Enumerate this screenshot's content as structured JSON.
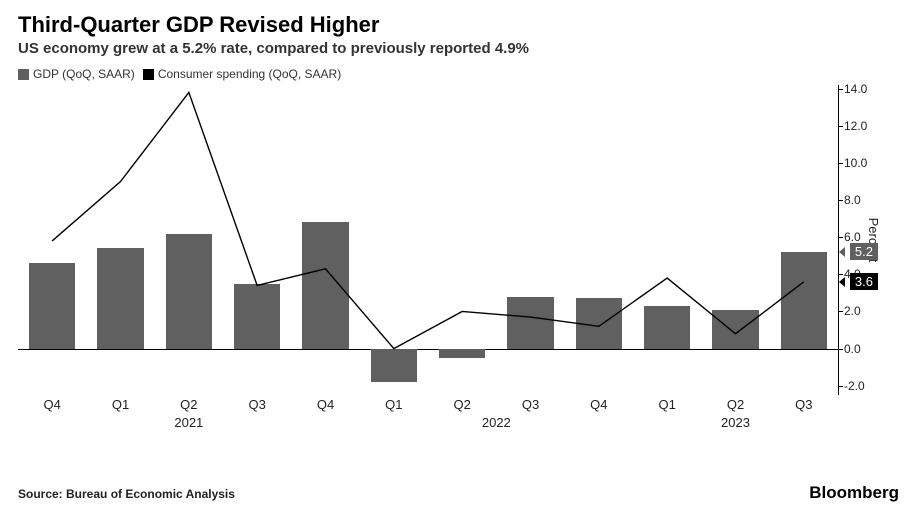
{
  "title": "Third-Quarter GDP Revised Higher",
  "subtitle": "US economy grew at a 5.2% rate, compared to previously reported 4.9%",
  "legend": {
    "series1": {
      "label": "GDP (QoQ, SAAR)",
      "swatch_color": "#606060"
    },
    "series2": {
      "label": "Consumer spending (QoQ, SAAR)",
      "swatch_color": "#000000"
    }
  },
  "chart": {
    "type": "bar+line",
    "yaxis": {
      "label": "Percent",
      "min": -2.5,
      "max": 14.2,
      "ticks": [
        -2.0,
        0.0,
        2.0,
        4.0,
        6.0,
        8.0,
        10.0,
        12.0,
        14.0
      ]
    },
    "categories": [
      "Q4",
      "Q1",
      "Q2",
      "Q3",
      "Q4",
      "Q1",
      "Q2",
      "Q3",
      "Q4",
      "Q1",
      "Q2",
      "Q3"
    ],
    "year_groups": [
      {
        "label": "2021",
        "center_index": 2
      },
      {
        "label": "2022",
        "center_index": 6.5
      },
      {
        "label": "2023",
        "center_index": 10
      }
    ],
    "bars": {
      "color": "#606060",
      "width_frac": 0.68,
      "values": [
        4.6,
        5.4,
        6.2,
        3.5,
        6.8,
        -1.8,
        -0.5,
        2.8,
        2.7,
        2.3,
        2.1,
        5.2
      ]
    },
    "line": {
      "color": "#000000",
      "width": 1.4,
      "values": [
        5.8,
        9.0,
        13.8,
        3.4,
        4.3,
        0.0,
        2.0,
        1.7,
        1.2,
        3.8,
        0.8,
        3.6
      ]
    },
    "callouts": [
      {
        "value": "5.2",
        "bg": "#606060",
        "y": 5.2
      },
      {
        "value": "3.6",
        "bg": "#000000",
        "y": 3.6
      }
    ],
    "background_color": "#ffffff"
  },
  "source": "Source: Bureau of Economic Analysis",
  "brand": "Bloomberg"
}
